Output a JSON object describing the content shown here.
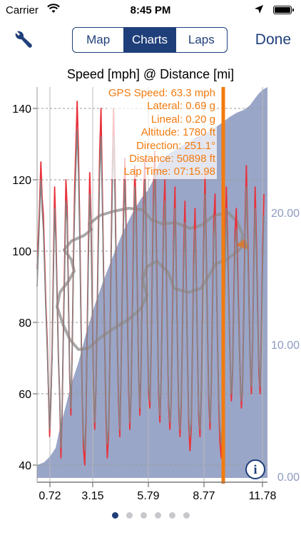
{
  "status_bar": {
    "carrier": "Carrier",
    "time": "8:45 PM",
    "icons": [
      "wifi-icon",
      "location-arrow-icon",
      "battery-icon"
    ]
  },
  "nav": {
    "settings_icon": "wrench-icon",
    "tabs": [
      {
        "label": "Map",
        "selected": false
      },
      {
        "label": "Charts",
        "selected": true
      },
      {
        "label": "Laps",
        "selected": false
      }
    ],
    "done_label": "Done",
    "accent_color": "#1f3f7a"
  },
  "chart_data": {
    "type": "line",
    "title": "Speed [mph] @ Distance [mi]",
    "x_ticks": [
      "0.72",
      "3.15",
      "5.79",
      "8.77",
      "11.78"
    ],
    "y_left_ticks": [
      "40",
      "60",
      "80",
      "100",
      "120",
      "140"
    ],
    "y_right_ticks": [
      "0.00",
      "10.00",
      "20.00"
    ],
    "ylim_left": [
      30,
      145
    ],
    "ylim_right": [
      0,
      28
    ],
    "xlim": [
      0,
      12.2
    ],
    "grid": true,
    "series": [
      {
        "color": "#e8323c",
        "values": [
          95,
          104,
          113,
          125,
          115,
          110,
          98,
          85,
          75,
          62,
          48,
          58,
          72,
          95,
          118,
          105,
          88,
          70,
          60,
          42,
          55,
          78,
          98,
          120,
          112,
          88,
          65,
          54,
          72,
          98,
          118,
          130,
          142,
          128,
          108,
          82,
          60,
          45,
          40,
          52,
          78,
          102,
          122,
          110,
          86,
          62,
          50,
          62,
          84,
          108,
          128,
          140,
          118,
          96,
          72,
          54,
          42,
          48,
          68,
          98,
          122,
          140,
          124,
          98,
          76,
          58,
          48,
          66,
          90,
          112,
          126,
          108,
          84,
          62,
          50,
          60,
          82,
          106,
          124,
          112,
          88,
          66,
          54,
          68,
          92,
          114,
          126,
          104,
          80,
          60,
          56,
          72,
          96,
          118,
          128,
          106,
          82,
          60,
          52,
          64,
          88,
          110,
          120,
          98,
          76,
          56,
          50,
          58,
          80,
          104,
          118,
          96,
          74,
          56,
          48,
          56,
          78,
          100,
          114,
          92,
          70,
          52,
          44,
          50,
          74,
          98,
          112,
          94,
          72,
          54,
          48,
          60,
          82,
          104,
          122,
          100,
          78,
          58,
          50,
          62,
          86,
          108,
          116,
          96,
          74,
          56,
          46,
          42,
          52,
          76,
          100,
          118,
          104,
          86,
          70,
          58,
          66,
          88,
          106,
          112,
          96,
          80,
          66,
          56,
          62,
          84,
          108,
          124,
          106,
          88,
          70,
          60,
          74,
          98,
          118,
          102,
          84,
          66,
          60,
          78,
          100,
          116
        ]
      },
      {
        "color": "#858585",
        "values": [
          90,
          100,
          110,
          120,
          112,
          106,
          95,
          83,
          73,
          62,
          50,
          58,
          70,
          92,
          112,
          102,
          86,
          70,
          60,
          45,
          56,
          76,
          94,
          114,
          108,
          86,
          66,
          56,
          72,
          96,
          112,
          124,
          134,
          122,
          104,
          80,
          60,
          48,
          44,
          54,
          76,
          98,
          116,
          106,
          84,
          62,
          52,
          62,
          82,
          104,
          122,
          132,
          114,
          94,
          72,
          56,
          46,
          50,
          68,
          96,
          116,
          132,
          118,
          96,
          76,
          60,
          50,
          66,
          88,
          108,
          120,
          104,
          82,
          64,
          52,
          60,
          80,
          102,
          118,
          108,
          86,
          66,
          56,
          68,
          90,
          110,
          120,
          102,
          80,
          62,
          58,
          72,
          94,
          112,
          122,
          102,
          80,
          62,
          54,
          64,
          86,
          106,
          114,
          96,
          76,
          58,
          52,
          58,
          78,
          100,
          112,
          94,
          74,
          58,
          50,
          58,
          78,
          96,
          108,
          90,
          70,
          54,
          48,
          52,
          74,
          94,
          106,
          92,
          72,
          56,
          50,
          60,
          80,
          100,
          116,
          98,
          78,
          60,
          52,
          62,
          84,
          104,
          110,
          94,
          74,
          58,
          50,
          46,
          54,
          74,
          96,
          112,
          100,
          84,
          70,
          60,
          66,
          86,
          102,
          106,
          92,
          78,
          66,
          58,
          62,
          82,
          104,
          118,
          102,
          86,
          70,
          62,
          74,
          96,
          112,
          98,
          82,
          68,
          62,
          76,
          96,
          110
        ]
      }
    ],
    "distance_area_color": "#9aa6c8",
    "marker_color": "#f27b10",
    "readout": [
      "GPS Speed: 63.3 mph",
      "Lateral: 0.69 g",
      "Lineal: 0.20 g",
      "Altitude: 1780 ft",
      "Direction: 251.1°",
      "Distance: 50898 ft",
      "Lap Time: 07:15.98"
    ],
    "info_icon": "info-icon"
  },
  "page_indicator": {
    "count": 6,
    "selected": 0
  }
}
